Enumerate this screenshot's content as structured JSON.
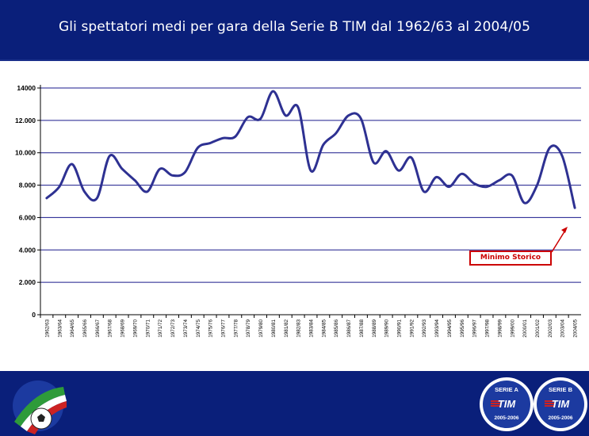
{
  "header": {
    "title": "Gli spettatori medi per gara della Serie B TIM dal 1962/63 al 2004/05"
  },
  "annotation": {
    "label": "Minimo Storico"
  },
  "badges": [
    {
      "top": "SERIE A",
      "mid": "TIM",
      "bottom": "2005-2006"
    },
    {
      "top": "SERIE B",
      "mid": "TIM",
      "bottom": "2005-2006"
    }
  ],
  "colors": {
    "header_bg": "#0a1f7a",
    "line": "#2e3192",
    "grid": "#1a1a8c",
    "annotation": "#cc0000"
  },
  "chart_data": {
    "type": "line",
    "title": "",
    "xlabel": "",
    "ylabel": "",
    "ylim": [
      0,
      14000
    ],
    "yticks": [
      "0",
      "2.000",
      "4.000",
      "6.000",
      "8.000",
      "10.000",
      "12.000",
      "14000"
    ],
    "grid": true,
    "categories": [
      "1962/63",
      "1963/64",
      "1964/65",
      "1965/66",
      "1966/67",
      "1967/68",
      "1968/69",
      "1969/70",
      "1970/71",
      "1971/72",
      "1972/73",
      "1973/74",
      "1974/75",
      "1975/76",
      "1976/77",
      "1977/78",
      "1978/79",
      "1979/80",
      "1980/81",
      "1981/82",
      "1982/83",
      "1983/84",
      "1984/85",
      "1985/86",
      "1986/87",
      "1987/88",
      "1988/89",
      "1989/90",
      "1990/91",
      "1991/92",
      "1992/93",
      "1993/94",
      "1994/95",
      "1995/96",
      "1996/97",
      "1997/98",
      "1998/99",
      "1999/00",
      "2000/01",
      "2001/02",
      "2002/03",
      "2003/04",
      "2004/05"
    ],
    "series": [
      {
        "values": [
          7200,
          7900,
          9300,
          7600,
          7200,
          9800,
          9000,
          8300,
          7600,
          9000,
          8600,
          8800,
          10300,
          10600,
          10900,
          11000,
          12200,
          12100,
          13800,
          12300,
          12800,
          8900,
          10500,
          11200,
          12300,
          12100,
          9400,
          10100,
          8900,
          9700,
          7600,
          8500,
          7900,
          8700,
          8100,
          7900,
          8300,
          8600,
          6900,
          8000,
          10300,
          9800,
          6600
        ]
      }
    ]
  }
}
